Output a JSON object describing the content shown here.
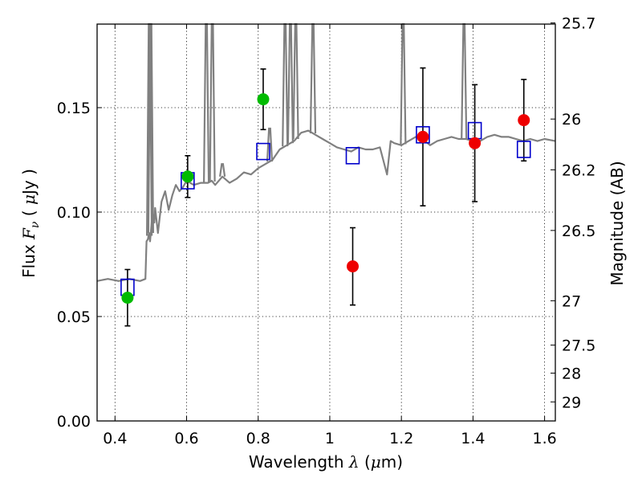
{
  "chart_data": {
    "type": "scatter",
    "xlabel": {
      "pre": "Wavelength  ",
      "sym": "λ",
      "post": " (",
      "unit_sym": "μ",
      "unit_post": "m)"
    },
    "ylabel": {
      "pre": "Flux  ",
      "sym": "F",
      "sub": "ν",
      "post": "  ( ",
      "unit_sym": "μ",
      "unit_post": "Jy )"
    },
    "y2label": "Magnitude (AB)",
    "xlim": [
      0.35,
      1.63
    ],
    "ylim": [
      0.0,
      0.19
    ],
    "grid": true,
    "xticks": [
      0.4,
      0.6,
      0.8,
      1.0,
      1.2,
      1.4,
      1.6
    ],
    "xtick_labels": [
      "0.4",
      "0.6",
      "0.8",
      "1",
      "1.2",
      "1.4",
      "1.6"
    ],
    "yticks": [
      0.0,
      0.05,
      0.1,
      0.15
    ],
    "ytick_labels": [
      "0.00",
      "0.05",
      "0.10",
      "0.15"
    ],
    "y2ticks": [
      25.7,
      26,
      26.2,
      26.5,
      27,
      27.5,
      28,
      29
    ],
    "y2tick_labels": [
      "25.7",
      "26",
      "26.2",
      "26.5",
      "27",
      "27.5",
      "28",
      "29"
    ],
    "colors": {
      "sed": "#808080",
      "model": "#0000cc",
      "green": "#00bb00",
      "red": "#ee0000",
      "errorbar": "#000000"
    },
    "sed_line": {
      "x": [
        0.35,
        0.38,
        0.41,
        0.44,
        0.47,
        0.485,
        0.488,
        0.492,
        0.495,
        0.498,
        0.505,
        0.51,
        0.512,
        0.514,
        0.52,
        0.53,
        0.54,
        0.55,
        0.56,
        0.57,
        0.58,
        0.59,
        0.6,
        0.62,
        0.64,
        0.66,
        0.67,
        0.68,
        0.7,
        0.72,
        0.74,
        0.76,
        0.78,
        0.8,
        0.82,
        0.84,
        0.86,
        0.88,
        0.9,
        0.92,
        0.94,
        0.96,
        0.98,
        1.0,
        1.02,
        1.04,
        1.06,
        1.08,
        1.1,
        1.12,
        1.14,
        1.16,
        1.17,
        1.18,
        1.2,
        1.22,
        1.24,
        1.26,
        1.28,
        1.3,
        1.32,
        1.34,
        1.36,
        1.38,
        1.4,
        1.42,
        1.44,
        1.46,
        1.48,
        1.5,
        1.52,
        1.54,
        1.56,
        1.58,
        1.6,
        1.63
      ],
      "y": [
        0.067,
        0.068,
        0.067,
        0.068,
        0.067,
        0.068,
        0.086,
        0.087,
        0.09,
        0.086,
        0.1,
        0.095,
        0.102,
        0.099,
        0.09,
        0.105,
        0.11,
        0.101,
        0.108,
        0.113,
        0.11,
        0.112,
        0.115,
        0.113,
        0.114,
        0.114,
        0.115,
        0.113,
        0.117,
        0.114,
        0.116,
        0.119,
        0.118,
        0.121,
        0.123,
        0.125,
        0.13,
        0.132,
        0.134,
        0.138,
        0.139,
        0.137,
        0.135,
        0.133,
        0.131,
        0.13,
        0.129,
        0.131,
        0.13,
        0.13,
        0.131,
        0.118,
        0.134,
        0.133,
        0.132,
        0.134,
        0.136,
        0.135,
        0.132,
        0.134,
        0.135,
        0.136,
        0.135,
        0.135,
        0.134,
        0.134,
        0.136,
        0.137,
        0.136,
        0.136,
        0.135,
        0.134,
        0.135,
        0.134,
        0.135,
        0.134
      ]
    },
    "emission_lines": [
      {
        "x": 0.496,
        "peak": 0.19
      },
      {
        "x": 0.5,
        "peak": 0.19
      },
      {
        "x": 0.655,
        "peak": 0.19
      },
      {
        "x": 0.672,
        "peak": 0.19
      },
      {
        "x": 0.875,
        "peak": 0.19
      },
      {
        "x": 0.89,
        "peak": 0.19
      },
      {
        "x": 0.905,
        "peak": 0.19
      },
      {
        "x": 0.953,
        "peak": 0.19
      },
      {
        "x": 1.205,
        "peak": 0.19
      },
      {
        "x": 1.375,
        "peak": 0.19
      },
      {
        "x": 0.832,
        "peak": 0.14
      },
      {
        "x": 0.7,
        "peak": 0.123
      }
    ],
    "model_points": [
      {
        "x": 0.435,
        "y": 0.064
      },
      {
        "x": 0.603,
        "y": 0.115
      },
      {
        "x": 0.814,
        "y": 0.129
      },
      {
        "x": 1.064,
        "y": 0.127
      },
      {
        "x": 1.26,
        "y": 0.137
      },
      {
        "x": 1.405,
        "y": 0.139
      },
      {
        "x": 1.542,
        "y": 0.13
      }
    ],
    "green_points": [
      {
        "x": 0.435,
        "y": 0.059,
        "err": 0.0135
      },
      {
        "x": 0.603,
        "y": 0.117,
        "err": 0.01
      },
      {
        "x": 0.814,
        "y": 0.154,
        "err": 0.0145
      }
    ],
    "red_points": [
      {
        "x": 1.064,
        "y": 0.074,
        "err": 0.0185
      },
      {
        "x": 1.26,
        "y": 0.136,
        "err": 0.033
      },
      {
        "x": 1.405,
        "y": 0.133,
        "err": 0.028
      },
      {
        "x": 1.542,
        "y": 0.144,
        "err": 0.0195
      }
    ]
  }
}
